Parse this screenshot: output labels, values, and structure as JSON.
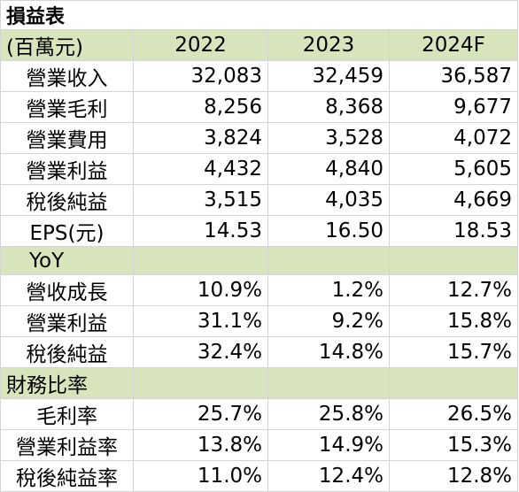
{
  "title": "損益表",
  "header": {
    "unit": "(百萬元)",
    "years": [
      "2022",
      "2023",
      "2024F"
    ]
  },
  "income_rows": [
    {
      "label": "營業收入",
      "values": [
        "32,083",
        "32,459",
        "36,587"
      ]
    },
    {
      "label": "營業毛利",
      "values": [
        "8,256",
        "8,368",
        "9,677"
      ]
    },
    {
      "label": "營業費用",
      "values": [
        "3,824",
        "3,528",
        "4,072"
      ]
    },
    {
      "label": "營業利益",
      "values": [
        "4,432",
        "4,840",
        "5,605"
      ]
    },
    {
      "label": "稅後純益",
      "values": [
        "3,515",
        "4,035",
        "4,669"
      ]
    },
    {
      "label": "EPS(元)",
      "values": [
        "14.53",
        "16.50",
        "18.53"
      ]
    }
  ],
  "yoy_section": {
    "title": "YoY"
  },
  "yoy_rows": [
    {
      "label": "營收成長",
      "values": [
        "10.9%",
        "1.2%",
        "12.7%"
      ]
    },
    {
      "label": "營業利益",
      "values": [
        "31.1%",
        "9.2%",
        "15.8%"
      ]
    },
    {
      "label": "稅後純益",
      "values": [
        "32.4%",
        "14.8%",
        "15.7%"
      ]
    }
  ],
  "ratio_section": {
    "title": "財務比率"
  },
  "ratio_rows": [
    {
      "label": "毛利率",
      "values": [
        "25.7%",
        "25.8%",
        "26.5%"
      ]
    },
    {
      "label": "營業利益率",
      "values": [
        "13.8%",
        "14.9%",
        "15.3%"
      ]
    },
    {
      "label": "稅後純益率",
      "values": [
        "11.0%",
        "12.4%",
        "12.8%"
      ]
    }
  ],
  "colors": {
    "section_fill": "#d8e4bc",
    "grid_line": "#d4d4d4"
  }
}
